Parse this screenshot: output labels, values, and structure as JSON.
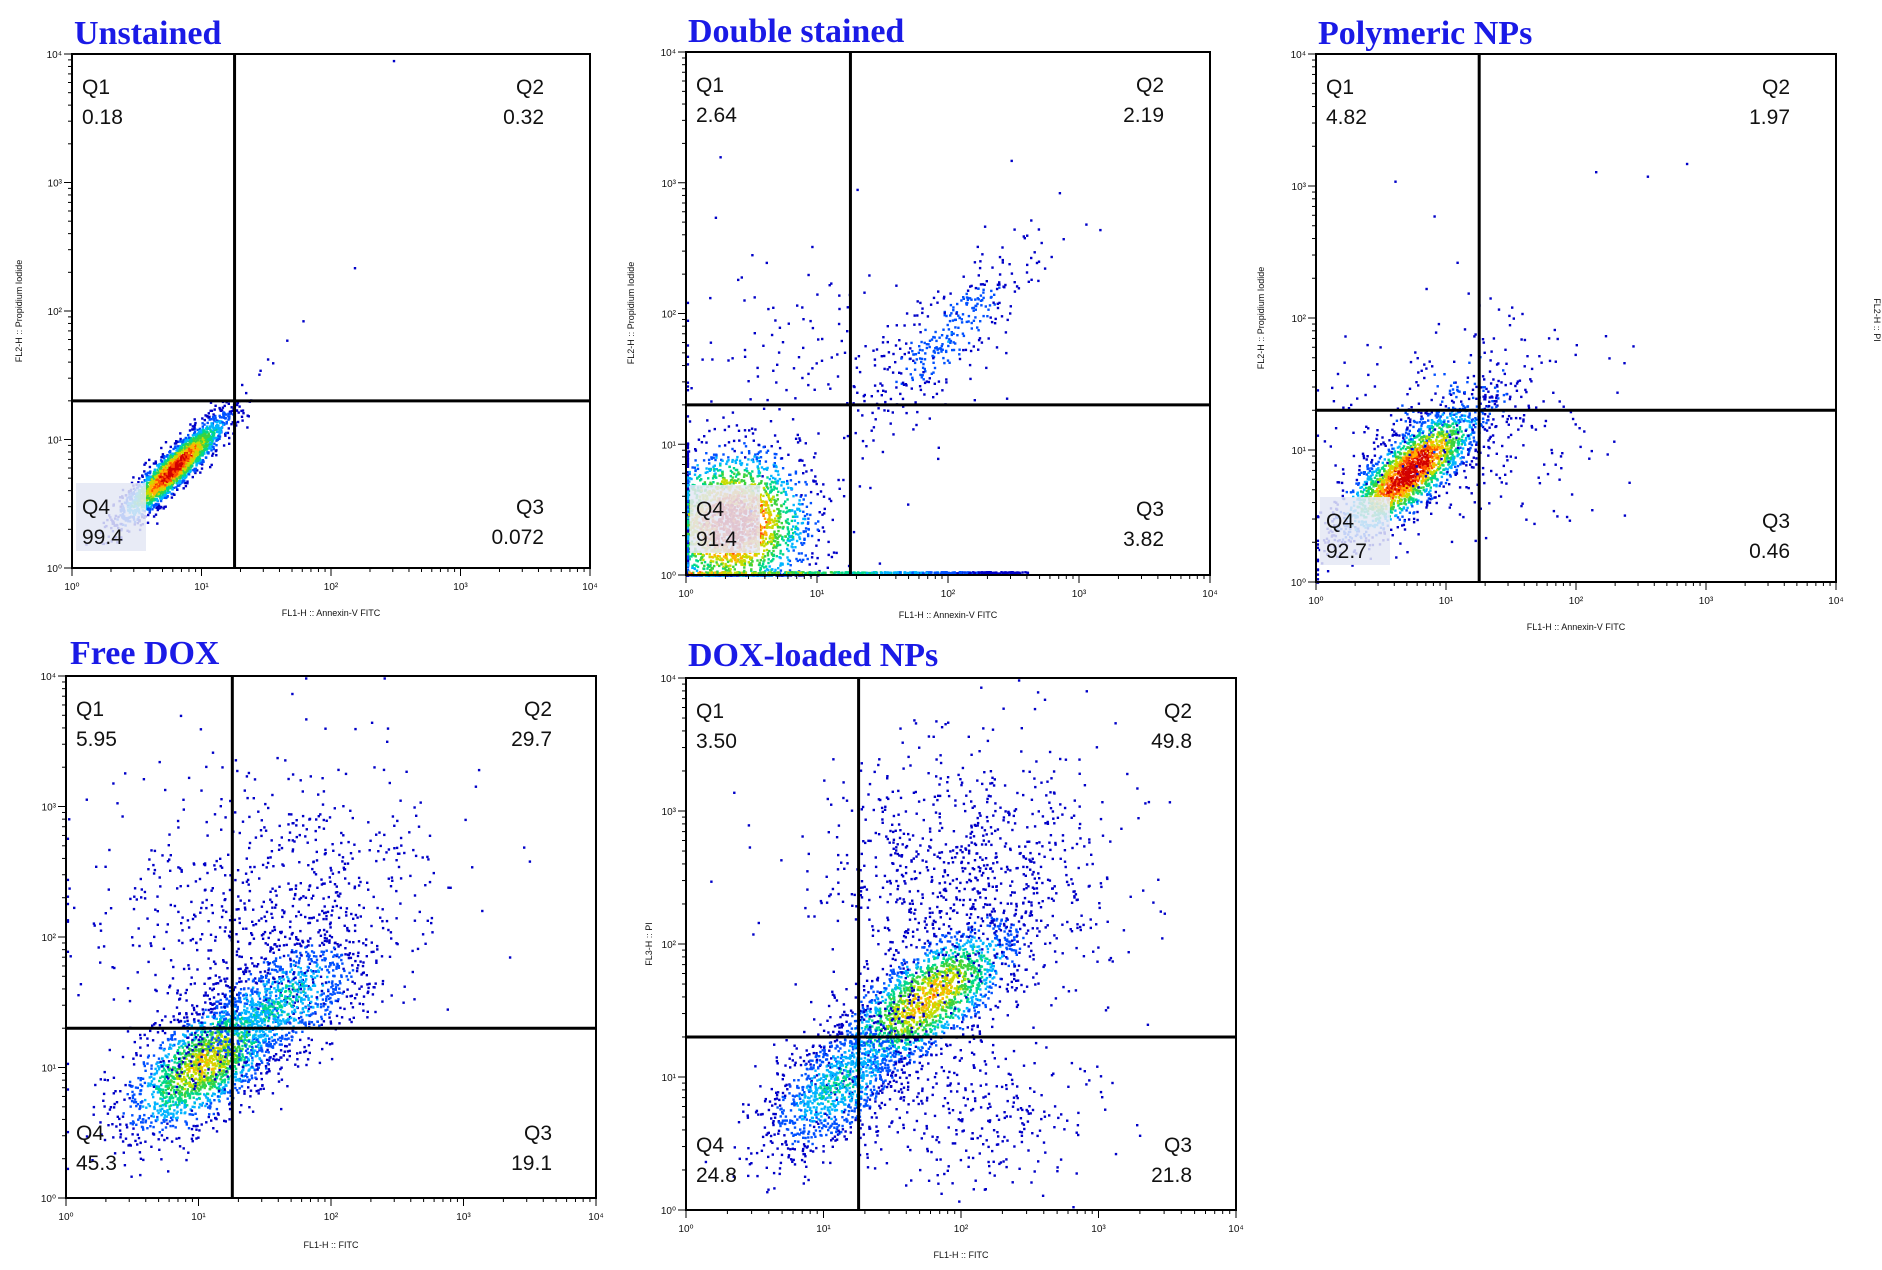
{
  "figure": {
    "side_label": "FL2-H :: PI"
  },
  "colors": {
    "title": "#1a1ae6",
    "density_scale": [
      "#0000c8",
      "#0050ff",
      "#00b4ff",
      "#00d88a",
      "#3cd23c",
      "#c8dc00",
      "#ffb400",
      "#ff5000",
      "#d20000"
    ]
  },
  "chart_data": [
    {
      "id": "unstained",
      "type": "scatter",
      "title": "Unstained",
      "xlabel": "FL1-H :: Annexin-V FITC",
      "ylabel": "FL2-H :: Propidium Iodide",
      "x_scale": "log",
      "y_scale": "log",
      "xlim": [
        1,
        10000
      ],
      "ylim": [
        1,
        10000
      ],
      "x_ticks": [
        "10⁰",
        "10¹",
        "10²",
        "10³",
        "10⁴"
      ],
      "y_ticks": [
        "10⁰",
        "10¹",
        "10²",
        "10³",
        "10⁴"
      ],
      "gate": {
        "x": 18,
        "y": 20
      },
      "quadrants": {
        "Q1": {
          "label": "Q1",
          "value": "0.18"
        },
        "Q2": {
          "label": "Q2",
          "value": "0.32"
        },
        "Q3": {
          "label": "Q3",
          "value": "0.072"
        },
        "Q4": {
          "label": "Q4",
          "value": "99.4"
        }
      },
      "populations": [
        {
          "n": 2200,
          "cx": 0.78,
          "cy": 0.78,
          "s1": 0.28,
          "s2": 0.06,
          "angle": 45,
          "intensity": 1.0
        }
      ],
      "outliers": [
        [
          300,
          9000
        ],
        [
          150,
          220
        ],
        [
          60,
          85
        ],
        [
          45,
          60
        ],
        [
          35,
          40
        ],
        [
          28,
          35
        ]
      ]
    },
    {
      "id": "double-stained",
      "type": "scatter",
      "title": "Double stained",
      "xlabel": "FL1-H :: Annexin-V FITC",
      "ylabel": "FL2-H :: Propidium Iodide",
      "x_scale": "log",
      "y_scale": "log",
      "xlim": [
        1,
        10000
      ],
      "ylim": [
        1,
        10000
      ],
      "x_ticks": [
        "10⁰",
        "10¹",
        "10²",
        "10³",
        "10⁴"
      ],
      "y_ticks": [
        "10⁰",
        "10¹",
        "10²",
        "10³",
        "10⁴"
      ],
      "gate": {
        "x": 18,
        "y": 20
      },
      "quadrants": {
        "Q1": {
          "label": "Q1",
          "value": "2.64"
        },
        "Q2": {
          "label": "Q2",
          "value": "2.19"
        },
        "Q3": {
          "label": "Q3",
          "value": "3.82"
        },
        "Q4": {
          "label": "Q4",
          "value": "91.4"
        }
      },
      "populations": [
        {
          "n": 2400,
          "cx": 0.35,
          "cy": 0.4,
          "s1": 0.3,
          "s2": 0.28,
          "angle": 20,
          "intensity": 1.0
        },
        {
          "n": 350,
          "cx": 2.0,
          "cy": 1.85,
          "s1": 0.45,
          "s2": 0.15,
          "angle": 45,
          "intensity": 0.2
        },
        {
          "n": 140,
          "cx": 1.0,
          "cy": 1.6,
          "s1": 0.6,
          "s2": 0.4,
          "angle": 0,
          "intensity": 0.1
        }
      ],
      "baseline": {
        "x_from": 1,
        "x_to": 400
      },
      "outliers": [
        [
          1.8,
          1600
        ],
        [
          20,
          900
        ],
        [
          300,
          1500
        ],
        [
          700,
          850
        ]
      ]
    },
    {
      "id": "polymeric-nps",
      "type": "scatter",
      "title": "Polymeric NPs",
      "xlabel": "FL1-H :: Annexin-V FITC",
      "ylabel": "FL2-H :: Propidium Iodide",
      "x_scale": "log",
      "y_scale": "log",
      "xlim": [
        1,
        10000
      ],
      "ylim": [
        1,
        10000
      ],
      "x_ticks": [
        "10⁰",
        "10¹",
        "10²",
        "10³",
        "10⁴"
      ],
      "y_ticks": [
        "10⁰",
        "10¹",
        "10²",
        "10³",
        "10⁴"
      ],
      "gate": {
        "x": 18,
        "y": 20
      },
      "quadrants": {
        "Q1": {
          "label": "Q1",
          "value": "4.82"
        },
        "Q2": {
          "label": "Q2",
          "value": "1.97"
        },
        "Q3": {
          "label": "Q3",
          "value": "0.46"
        },
        "Q4": {
          "label": "Q4",
          "value": "92.7"
        }
      },
      "populations": [
        {
          "n": 2100,
          "cx": 0.72,
          "cy": 0.85,
          "s1": 0.34,
          "s2": 0.12,
          "angle": 42,
          "intensity": 1.0
        },
        {
          "n": 260,
          "cx": 1.05,
          "cy": 1.35,
          "s1": 0.55,
          "s2": 0.35,
          "angle": 30,
          "intensity": 0.15
        },
        {
          "n": 90,
          "cx": 1.5,
          "cy": 0.9,
          "s1": 0.4,
          "s2": 0.3,
          "angle": 0,
          "intensity": 0.1
        }
      ],
      "outliers": [
        [
          700,
          1500
        ],
        [
          140,
          1300
        ],
        [
          8,
          600
        ],
        [
          4,
          1100
        ],
        [
          350,
          1200
        ]
      ]
    },
    {
      "id": "free-dox",
      "type": "scatter",
      "title": "Free DOX",
      "xlabel": "FL1-H :: FITC",
      "ylabel": "",
      "x_scale": "log",
      "y_scale": "log",
      "xlim": [
        1,
        10000
      ],
      "ylim": [
        1,
        10000
      ],
      "x_ticks": [
        "10⁰",
        "10¹",
        "10²",
        "10³",
        "10⁴"
      ],
      "y_ticks": [
        "10⁰",
        "10¹",
        "10²",
        "10³",
        "10⁴"
      ],
      "gate": {
        "x": 18,
        "y": 20
      },
      "quadrants": {
        "Q1": {
          "label": "Q1",
          "value": "5.95"
        },
        "Q2": {
          "label": "Q2",
          "value": "29.7"
        },
        "Q3": {
          "label": "Q3",
          "value": "19.1"
        },
        "Q4": {
          "label": "Q4",
          "value": "45.3"
        }
      },
      "populations": [
        {
          "n": 1900,
          "cx": 1.05,
          "cy": 1.05,
          "s1": 0.38,
          "s2": 0.18,
          "angle": 40,
          "intensity": 0.65
        },
        {
          "n": 1100,
          "cx": 1.6,
          "cy": 1.5,
          "s1": 0.4,
          "s2": 0.2,
          "angle": 35,
          "intensity": 0.35
        },
        {
          "n": 650,
          "cx": 1.5,
          "cy": 2.3,
          "s1": 0.7,
          "s2": 0.45,
          "angle": 20,
          "intensity": 0.08
        }
      ],
      "outliers": [
        [
          150,
          4000
        ],
        [
          260,
          3200
        ],
        [
          2.2,
          60
        ],
        [
          3,
          200
        ]
      ]
    },
    {
      "id": "dox-loaded-nps",
      "type": "scatter",
      "title": "DOX-loaded NPs",
      "xlabel": "FL1-H :: FITC",
      "ylabel": "FL3-H :: PI",
      "x_scale": "log",
      "y_scale": "log",
      "xlim": [
        1,
        10000
      ],
      "ylim": [
        1,
        10000
      ],
      "x_ticks": [
        "10⁰",
        "10¹",
        "10²",
        "10³",
        "10⁴"
      ],
      "y_ticks": [
        "10⁰",
        "10¹",
        "10²",
        "10³",
        "10⁴"
      ],
      "gate": {
        "x": 18,
        "y": 20
      },
      "quadrants": {
        "Q1": {
          "label": "Q1",
          "value": "3.50"
        },
        "Q2": {
          "label": "Q2",
          "value": "49.8"
        },
        "Q3": {
          "label": "Q3",
          "value": "21.8"
        },
        "Q4": {
          "label": "Q4",
          "value": "24.8"
        }
      },
      "populations": [
        {
          "n": 1900,
          "cx": 1.75,
          "cy": 1.6,
          "s1": 0.42,
          "s2": 0.17,
          "angle": 40,
          "intensity": 0.7
        },
        {
          "n": 1100,
          "cx": 1.1,
          "cy": 0.95,
          "s1": 0.35,
          "s2": 0.18,
          "angle": 45,
          "intensity": 0.35
        },
        {
          "n": 850,
          "cx": 2.0,
          "cy": 2.5,
          "s1": 0.55,
          "s2": 0.5,
          "angle": 20,
          "intensity": 0.08
        },
        {
          "n": 300,
          "cx": 2.1,
          "cy": 0.7,
          "s1": 0.45,
          "s2": 0.3,
          "angle": 0,
          "intensity": 0.08
        }
      ],
      "outliers": [
        [
          400,
          7000
        ],
        [
          200,
          6000
        ],
        [
          1.5,
          300
        ],
        [
          2.2,
          1400
        ]
      ]
    }
  ]
}
